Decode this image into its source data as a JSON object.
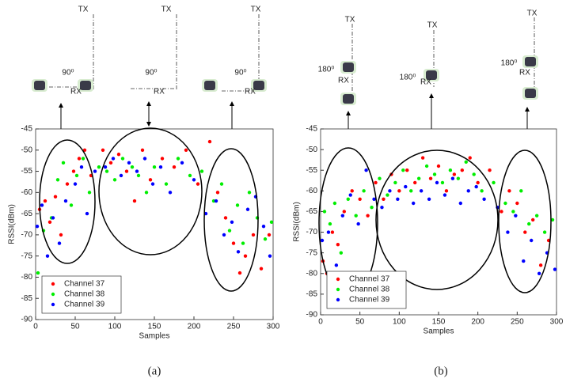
{
  "chart_data": [
    {
      "type": "scatter",
      "caption": "(a)",
      "xlabel": "Samples",
      "ylabel": "RSSI(dBm)",
      "annotations": [
        "TX",
        "TX",
        "TX",
        "90⁰",
        "90⁰",
        "90⁰",
        "RX",
        "RX",
        "RX"
      ],
      "xlim": [
        0,
        300
      ],
      "xticks": [
        0,
        50,
        100,
        150,
        200,
        250,
        300
      ],
      "ylim": [
        -90,
        -45
      ],
      "yticks": [
        -90,
        -85,
        -80,
        -75,
        -70,
        -65,
        -60,
        -55,
        -50,
        -45
      ],
      "legend": "lower left",
      "series": [
        {
          "name": "Channel 37",
          "color": "#ff0000",
          "x": [
            5,
            12,
            18,
            25,
            32,
            40,
            48,
            55,
            62,
            70,
            85,
            95,
            105,
            115,
            125,
            135,
            145,
            160,
            175,
            190,
            205,
            220,
            230,
            240,
            250,
            258,
            265,
            275,
            285,
            295
          ],
          "values": [
            -64,
            -62,
            -67,
            -61,
            -70,
            -58,
            -55,
            -52,
            -50,
            -56,
            -50,
            -53,
            -51,
            -55,
            -62,
            -50,
            -57,
            -52,
            -54,
            -50,
            -58,
            -48,
            -60,
            -66,
            -72,
            -79,
            -75,
            -70,
            -78,
            -70
          ]
        },
        {
          "name": "Channel 38",
          "color": "#00ee00",
          "x": [
            3,
            10,
            20,
            28,
            35,
            45,
            52,
            60,
            68,
            80,
            90,
            100,
            110,
            122,
            130,
            140,
            150,
            165,
            180,
            195,
            210,
            225,
            235,
            245,
            255,
            262,
            270,
            280,
            290,
            298
          ],
          "values": [
            -79,
            -69,
            -66,
            -57,
            -53,
            -63,
            -56,
            -52,
            -60,
            -54,
            -55,
            -57,
            -52,
            -54,
            -56,
            -60,
            -54,
            -58,
            -52,
            -56,
            -55,
            -62,
            -58,
            -69,
            -63,
            -72,
            -60,
            -66,
            -71,
            -67
          ]
        },
        {
          "name": "Channel 39",
          "color": "#0000ff",
          "x": [
            2,
            8,
            15,
            22,
            30,
            38,
            50,
            58,
            65,
            75,
            88,
            98,
            108,
            118,
            128,
            138,
            148,
            158,
            170,
            185,
            200,
            215,
            228,
            238,
            248,
            256,
            268,
            278,
            288,
            296
          ],
          "values": [
            -68,
            -63,
            -75,
            -66,
            -72,
            -62,
            -58,
            -54,
            -65,
            -55,
            -54,
            -52,
            -56,
            -53,
            -55,
            -52,
            -58,
            -54,
            -60,
            -53,
            -57,
            -65,
            -62,
            -70,
            -67,
            -74,
            -64,
            -61,
            -68,
            -75
          ]
        }
      ]
    },
    {
      "type": "scatter",
      "caption": "(b)",
      "xlabel": "Samples",
      "ylabel": "RSSI(dBm)",
      "annotations": [
        "TX",
        "TX",
        "TX",
        "180⁰",
        "180⁰",
        "180⁰",
        "RX",
        "RX",
        "RX"
      ],
      "xlim": [
        0,
        300
      ],
      "xticks": [
        0,
        50,
        100,
        150,
        200,
        250,
        300
      ],
      "ylim": [
        -90,
        -45
      ],
      "yticks": [
        -90,
        -85,
        -80,
        -75,
        -70,
        -65,
        -60,
        -55,
        -50,
        -45
      ],
      "legend": "lower left",
      "series": [
        {
          "name": "Channel 37",
          "color": "#ff0000",
          "x": [
            3,
            8,
            15,
            22,
            30,
            40,
            50,
            60,
            70,
            80,
            90,
            100,
            110,
            120,
            130,
            140,
            150,
            160,
            170,
            180,
            190,
            200,
            215,
            230,
            240,
            250,
            260,
            270,
            280,
            290
          ],
          "values": [
            -77,
            -80,
            -70,
            -73,
            -65,
            -60,
            -62,
            -66,
            -58,
            -62,
            -56,
            -60,
            -55,
            -58,
            -52,
            -57,
            -54,
            -60,
            -56,
            -55,
            -52,
            -58,
            -55,
            -65,
            -60,
            -63,
            -70,
            -67,
            -78,
            -72
          ]
        },
        {
          "name": "Channel 38",
          "color": "#00ee00",
          "x": [
            5,
            12,
            18,
            26,
            35,
            45,
            55,
            65,
            75,
            85,
            95,
            105,
            115,
            125,
            135,
            145,
            155,
            165,
            175,
            185,
            195,
            205,
            220,
            235,
            245,
            255,
            265,
            275,
            285,
            295
          ],
          "values": [
            -65,
            -68,
            -63,
            -75,
            -62,
            -66,
            -60,
            -64,
            -57,
            -61,
            -58,
            -55,
            -60,
            -57,
            -54,
            -56,
            -58,
            -55,
            -57,
            -53,
            -56,
            -60,
            -58,
            -63,
            -65,
            -60,
            -68,
            -66,
            -70,
            -67
          ]
        },
        {
          "name": "Channel 39",
          "color": "#0000ff",
          "x": [
            2,
            10,
            20,
            28,
            38,
            48,
            58,
            68,
            78,
            88,
            98,
            108,
            118,
            128,
            138,
            148,
            158,
            168,
            178,
            188,
            198,
            208,
            225,
            238,
            248,
            258,
            268,
            278,
            288,
            298
          ],
          "values": [
            -72,
            -70,
            -78,
            -66,
            -61,
            -68,
            -55,
            -62,
            -64,
            -60,
            -62,
            -59,
            -63,
            -60,
            -62,
            -58,
            -61,
            -57,
            -63,
            -60,
            -59,
            -62,
            -64,
            -70,
            -66,
            -77,
            -72,
            -80,
            -75,
            -79
          ]
        }
      ]
    }
  ]
}
